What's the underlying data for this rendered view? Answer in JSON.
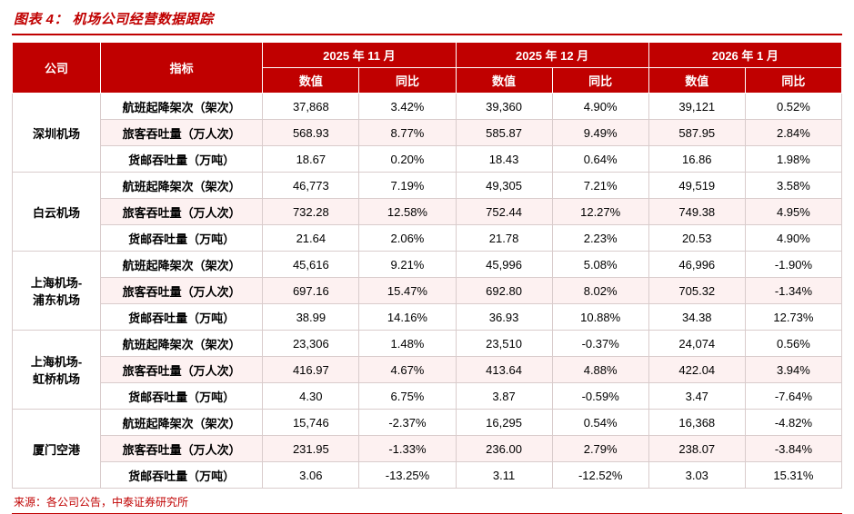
{
  "figure": {
    "title": "图表 4：  机场公司经营数据跟踪",
    "source": "来源：各公司公告，中泰证券研究所"
  },
  "colors": {
    "accent_red": "#c00000",
    "grid_line": "#d9cccc",
    "shaded_row": "#fdf1f1"
  },
  "chart_data": {
    "type": "table",
    "title": "机场公司经营数据跟踪",
    "row_header_columns": [
      "公司",
      "指标"
    ],
    "column_groups": [
      "2025 年 11 月",
      "2025 年 12 月",
      "2026 年 1 月"
    ],
    "sub_columns": [
      "数值",
      "同比"
    ],
    "companies": [
      {
        "name": "深圳机场",
        "rows": [
          {
            "indicator": "航班起降架次（架次）",
            "values": [
              "37,868",
              "3.42%",
              "39,360",
              "4.90%",
              "39,121",
              "0.52%"
            ]
          },
          {
            "indicator": "旅客吞吐量（万人次）",
            "values": [
              "568.93",
              "8.77%",
              "585.87",
              "9.49%",
              "587.95",
              "2.84%"
            ]
          },
          {
            "indicator": "货邮吞吐量（万吨）",
            "values": [
              "18.67",
              "0.20%",
              "18.43",
              "0.64%",
              "16.86",
              "1.98%"
            ]
          }
        ]
      },
      {
        "name": "白云机场",
        "rows": [
          {
            "indicator": "航班起降架次（架次）",
            "values": [
              "46,773",
              "7.19%",
              "49,305",
              "7.21%",
              "49,519",
              "3.58%"
            ]
          },
          {
            "indicator": "旅客吞吐量（万人次）",
            "values": [
              "732.28",
              "12.58%",
              "752.44",
              "12.27%",
              "749.38",
              "4.95%"
            ]
          },
          {
            "indicator": "货邮吞吐量（万吨）",
            "values": [
              "21.64",
              "2.06%",
              "21.78",
              "2.23%",
              "20.53",
              "4.90%"
            ]
          }
        ]
      },
      {
        "name": "上海机场-\n浦东机场",
        "rows": [
          {
            "indicator": "航班起降架次（架次）",
            "values": [
              "45,616",
              "9.21%",
              "45,996",
              "5.08%",
              "46,996",
              "-1.90%"
            ]
          },
          {
            "indicator": "旅客吞吐量（万人次）",
            "values": [
              "697.16",
              "15.47%",
              "692.80",
              "8.02%",
              "705.32",
              "-1.34%"
            ]
          },
          {
            "indicator": "货邮吞吐量（万吨）",
            "values": [
              "38.99",
              "14.16%",
              "36.93",
              "10.88%",
              "34.38",
              "12.73%"
            ]
          }
        ]
      },
      {
        "name": "上海机场-\n虹桥机场",
        "rows": [
          {
            "indicator": "航班起降架次（架次）",
            "values": [
              "23,306",
              "1.48%",
              "23,510",
              "-0.37%",
              "24,074",
              "0.56%"
            ]
          },
          {
            "indicator": "旅客吞吐量（万人次）",
            "values": [
              "416.97",
              "4.67%",
              "413.64",
              "4.88%",
              "422.04",
              "3.94%"
            ]
          },
          {
            "indicator": "货邮吞吐量（万吨）",
            "values": [
              "4.30",
              "6.75%",
              "3.87",
              "-0.59%",
              "3.47",
              "-7.64%"
            ]
          }
        ]
      },
      {
        "name": "厦门空港",
        "rows": [
          {
            "indicator": "航班起降架次（架次）",
            "values": [
              "15,746",
              "-2.37%",
              "16,295",
              "0.54%",
              "16,368",
              "-4.82%"
            ]
          },
          {
            "indicator": "旅客吞吐量（万人次）",
            "values": [
              "231.95",
              "-1.33%",
              "236.00",
              "2.79%",
              "238.07",
              "-3.84%"
            ]
          },
          {
            "indicator": "货邮吞吐量（万吨）",
            "values": [
              "3.06",
              "-13.25%",
              "3.11",
              "-12.52%",
              "3.03",
              "15.31%"
            ]
          }
        ]
      }
    ]
  }
}
